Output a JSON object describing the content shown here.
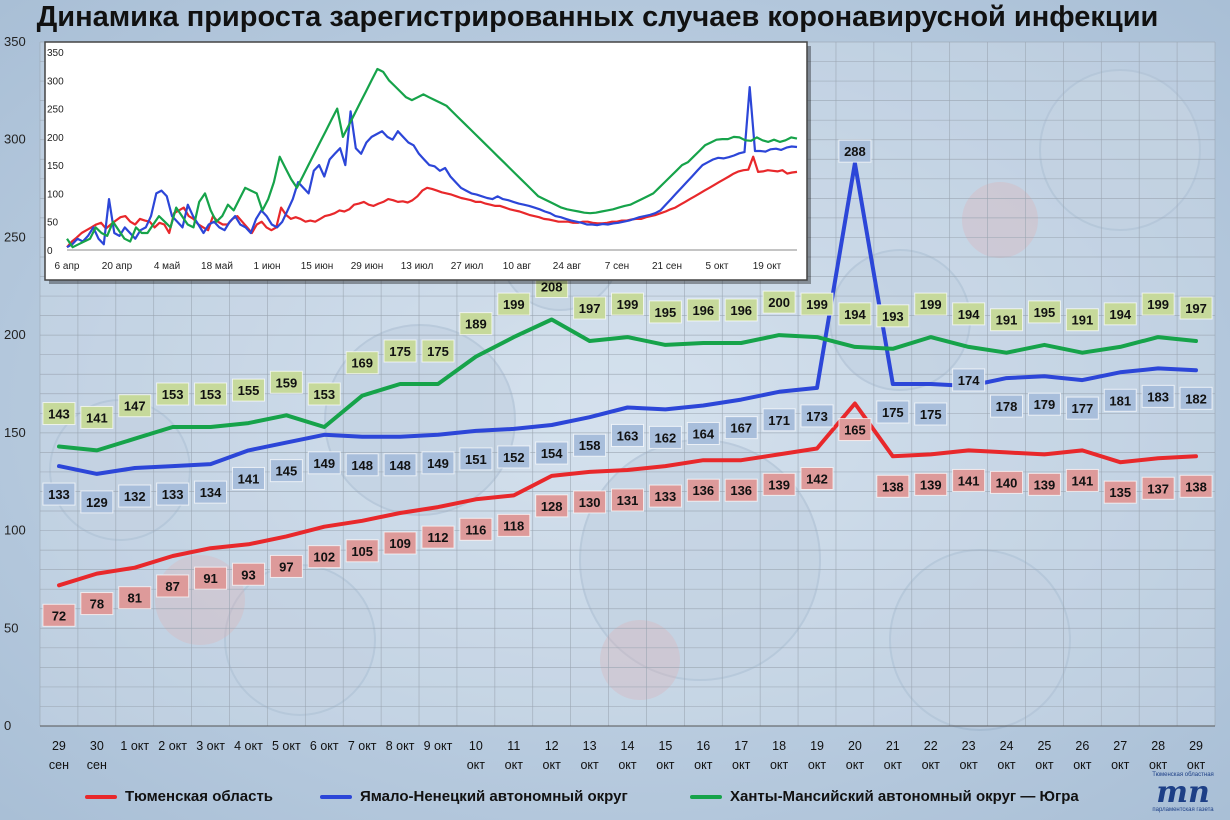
{
  "title": "Динамика прироста зарегистрированных случаев коронавирусной инфекции",
  "colors": {
    "tyumen": "#e8282b",
    "yamal": "#2c46d8",
    "hmao": "#16a34a"
  },
  "legend": [
    {
      "label": "Тюменская область",
      "color": "#e8282b"
    },
    {
      "label": "Ямало-Ненецкий автономный округ",
      "color": "#2c46d8"
    },
    {
      "label": "Ханты-Мансийский автономный округ — Югра",
      "color": "#16a34a"
    }
  ],
  "logo": {
    "top_text": "Тюменская областная",
    "mark": "тп",
    "bottom_text": "парламентская газета"
  },
  "chart_data": [
    {
      "type": "line",
      "ylim": [
        0,
        350
      ],
      "yticks": [
        0,
        50,
        100,
        150,
        200,
        250,
        300,
        350
      ],
      "grid": true,
      "categories": [
        [
          "29",
          "сен"
        ],
        [
          "30",
          "сен"
        ],
        [
          "1 окт"
        ],
        [
          "2 окт"
        ],
        [
          "3 окт"
        ],
        [
          "4 окт"
        ],
        [
          "5 окт"
        ],
        [
          "6 окт"
        ],
        [
          "7 окт"
        ],
        [
          "8 окт"
        ],
        [
          "9 окт"
        ],
        [
          "10",
          "окт"
        ],
        [
          "11",
          "окт"
        ],
        [
          "12",
          "окт"
        ],
        [
          "13",
          "окт"
        ],
        [
          "14",
          "окт"
        ],
        [
          "15",
          "окт"
        ],
        [
          "16",
          "окт"
        ],
        [
          "17",
          "окт"
        ],
        [
          "18",
          "окт"
        ],
        [
          "19",
          "окт"
        ],
        [
          "20",
          "окт"
        ],
        [
          "21",
          "окт"
        ],
        [
          "22",
          "окт"
        ],
        [
          "23",
          "окт"
        ],
        [
          "24",
          "окт"
        ],
        [
          "25",
          "окт"
        ],
        [
          "26",
          "окт"
        ],
        [
          "27",
          "окт"
        ],
        [
          "28",
          "окт"
        ],
        [
          "29",
          "окт"
        ]
      ],
      "series": [
        {
          "name": "Тюменская область",
          "color": "#e8282b",
          "label_bg": "#dd9a9a",
          "values": [
            72,
            78,
            81,
            87,
            91,
            93,
            97,
            102,
            105,
            109,
            112,
            116,
            118,
            128,
            130,
            131,
            133,
            136,
            136,
            139,
            142,
            165,
            138,
            139,
            141,
            140,
            139,
            141,
            135,
            137,
            138
          ]
        },
        {
          "name": "Ямало-Ненецкий автономный округ",
          "color": "#2c46d8",
          "label_bg": "#a8bedb",
          "values": [
            133,
            129,
            132,
            133,
            134,
            141,
            145,
            149,
            148,
            148,
            149,
            151,
            152,
            154,
            158,
            163,
            162,
            164,
            167,
            171,
            173,
            288,
            175,
            175,
            174,
            178,
            179,
            177,
            181,
            183,
            182
          ]
        },
        {
          "name": "Ханты-Мансийский автономный округ — Югра",
          "color": "#16a34a",
          "label_bg": "#c6d99b",
          "values": [
            143,
            141,
            147,
            153,
            153,
            155,
            159,
            153,
            169,
            175,
            175,
            189,
            199,
            208,
            197,
            199,
            195,
            196,
            196,
            200,
            199,
            194,
            193,
            199,
            194,
            191,
            195,
            191,
            194,
            199,
            197
          ]
        }
      ]
    },
    {
      "type": "line",
      "ylim": [
        0,
        350
      ],
      "yticks": [
        0,
        50,
        100,
        150,
        200,
        250,
        300,
        350
      ],
      "x_ticks": [
        "6 апр",
        "20 апр",
        "4 май",
        "18 май",
        "1 июн",
        "15 июн",
        "29 июн",
        "13 июл",
        "27 июл",
        "10 авг",
        "24 авг",
        "7 сен",
        "21 сен",
        "5 окт",
        "19 окт"
      ],
      "grid": false,
      "series": [
        {
          "name": "Тюменская область",
          "color": "#e8282b",
          "values": [
            5,
            15,
            22,
            30,
            35,
            40,
            45,
            48,
            38,
            45,
            52,
            58,
            60,
            50,
            45,
            55,
            52,
            50,
            40,
            48,
            45,
            30,
            65,
            70,
            75,
            60,
            55,
            45,
            40,
            35,
            60,
            50,
            45,
            45,
            55,
            60,
            50,
            40,
            30,
            45,
            50,
            40,
            35,
            40,
            75,
            62,
            55,
            58,
            55,
            50,
            52,
            50,
            55,
            60,
            62,
            65,
            70,
            68,
            72,
            80,
            82,
            85,
            80,
            78,
            82,
            85,
            90,
            88,
            85,
            86,
            84,
            88,
            95,
            105,
            110,
            108,
            105,
            102,
            100,
            98,
            95,
            92,
            90,
            88,
            85,
            85,
            82,
            80,
            78,
            78,
            75,
            72,
            70,
            68,
            65,
            62,
            60,
            58,
            55,
            54,
            52,
            50,
            50,
            50,
            48,
            48,
            50,
            50,
            48,
            47,
            47,
            48,
            50,
            50,
            52,
            52,
            54,
            55,
            55,
            58,
            60,
            62,
            65,
            68,
            72,
            75,
            80,
            85,
            90,
            95,
            100,
            105,
            110,
            115,
            120,
            125,
            130,
            135,
            139,
            141,
            142,
            165,
            138,
            139,
            141,
            140,
            139,
            141,
            135,
            137,
            138
          ]
        },
        {
          "name": "Ямало-Ненецкий автономный округ",
          "color": "#2c46d8",
          "values": [
            5,
            10,
            20,
            15,
            25,
            40,
            20,
            10,
            90,
            30,
            25,
            40,
            30,
            20,
            35,
            40,
            60,
            100,
            105,
            95,
            60,
            50,
            40,
            80,
            60,
            45,
            30,
            45,
            50,
            40,
            35,
            50,
            60,
            45,
            40,
            30,
            55,
            70,
            60,
            45,
            40,
            50,
            70,
            90,
            120,
            110,
            100,
            140,
            150,
            130,
            160,
            170,
            180,
            150,
            245,
            180,
            170,
            190,
            200,
            205,
            210,
            200,
            195,
            210,
            200,
            190,
            185,
            170,
            160,
            150,
            148,
            140,
            145,
            130,
            120,
            110,
            105,
            100,
            98,
            95,
            92,
            90,
            95,
            90,
            88,
            85,
            82,
            80,
            78,
            75,
            72,
            68,
            65,
            60,
            58,
            55,
            52,
            50,
            48,
            45,
            45,
            44,
            46,
            45,
            47,
            48,
            50,
            52,
            55,
            58,
            60,
            62,
            65,
            70,
            80,
            90,
            100,
            110,
            120,
            130,
            140,
            150,
            155,
            160,
            163,
            162,
            164,
            167,
            171,
            173,
            288,
            175,
            175,
            174,
            178,
            179,
            177,
            181,
            183,
            182
          ]
        },
        {
          "name": "Ханты-Мансийский автономный округ — Югра",
          "color": "#16a34a",
          "values": [
            20,
            5,
            10,
            15,
            20,
            40,
            30,
            25,
            50,
            35,
            20,
            15,
            40,
            30,
            30,
            45,
            60,
            50,
            40,
            75,
            60,
            45,
            40,
            85,
            100,
            70,
            50,
            60,
            80,
            70,
            90,
            110,
            105,
            100,
            70,
            90,
            120,
            165,
            145,
            125,
            110,
            130,
            150,
            170,
            190,
            210,
            230,
            250,
            200,
            220,
            240,
            260,
            280,
            300,
            320,
            315,
            300,
            290,
            280,
            270,
            265,
            270,
            275,
            270,
            265,
            260,
            255,
            245,
            235,
            225,
            215,
            205,
            195,
            185,
            175,
            165,
            155,
            145,
            135,
            125,
            115,
            105,
            95,
            90,
            85,
            80,
            75,
            72,
            70,
            68,
            66,
            65,
            66,
            68,
            70,
            72,
            75,
            78,
            80,
            85,
            90,
            95,
            100,
            110,
            120,
            130,
            140,
            150,
            155,
            165,
            175,
            185,
            190,
            195,
            196,
            196,
            200,
            199,
            194,
            193,
            199,
            194,
            191,
            195,
            191,
            194,
            199,
            197
          ]
        }
      ]
    }
  ]
}
